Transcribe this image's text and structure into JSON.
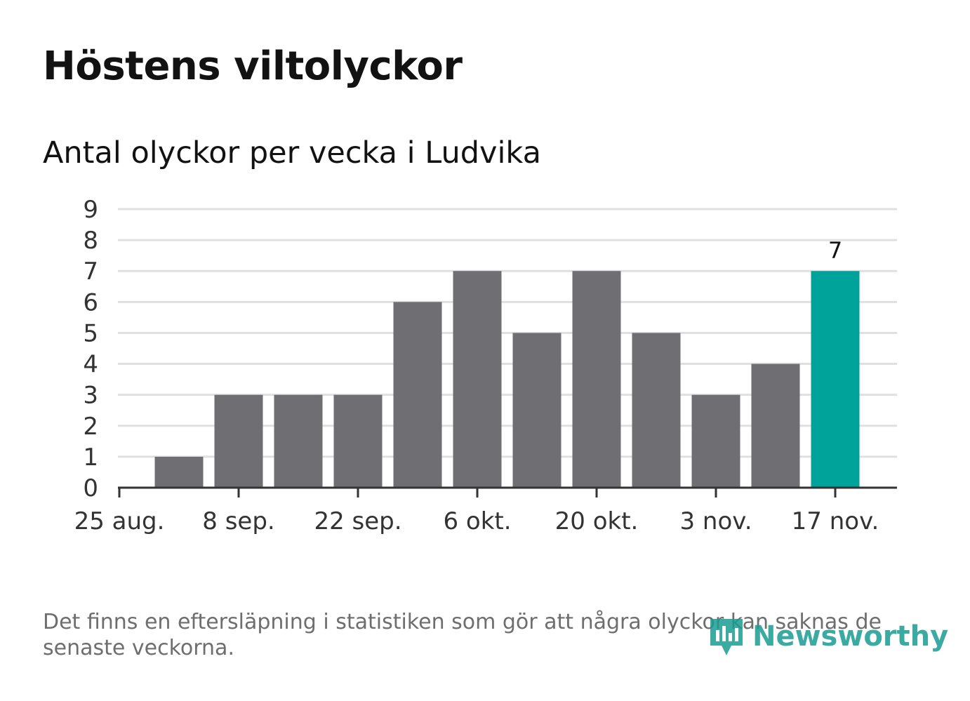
{
  "title": "Höstens viltolyckor",
  "subtitle": "Antal olyckor per vecka i Ludvika",
  "footnote": "Det finns en eftersläpning i statistiken som gör att några olyckor kan saknas de senaste veckorna.",
  "brand": {
    "name": "Newsworthy",
    "color": "#1a9c92"
  },
  "colors": {
    "bar": "#6f6e73",
    "highlight": "#00a399",
    "grid": "#e0e0e0",
    "axis": "#333333"
  },
  "chart_data": {
    "type": "bar",
    "title": "Antal olyckor per vecka i Ludvika",
    "xlabel": "",
    "ylabel": "",
    "ylim": [
      0,
      9
    ],
    "yticks": [
      "0",
      "1",
      "2",
      "3",
      "4",
      "5",
      "6",
      "7",
      "8",
      "9"
    ],
    "xticks": [
      "25 aug.",
      "8 sep.",
      "22 sep.",
      "6 okt.",
      "20 okt.",
      "3 nov.",
      "17 nov."
    ],
    "values": [
      1,
      3,
      3,
      3,
      6,
      7,
      5,
      7,
      5,
      3,
      4,
      7
    ],
    "highlight_index": 11,
    "highlight_label": "7",
    "grid": true
  }
}
